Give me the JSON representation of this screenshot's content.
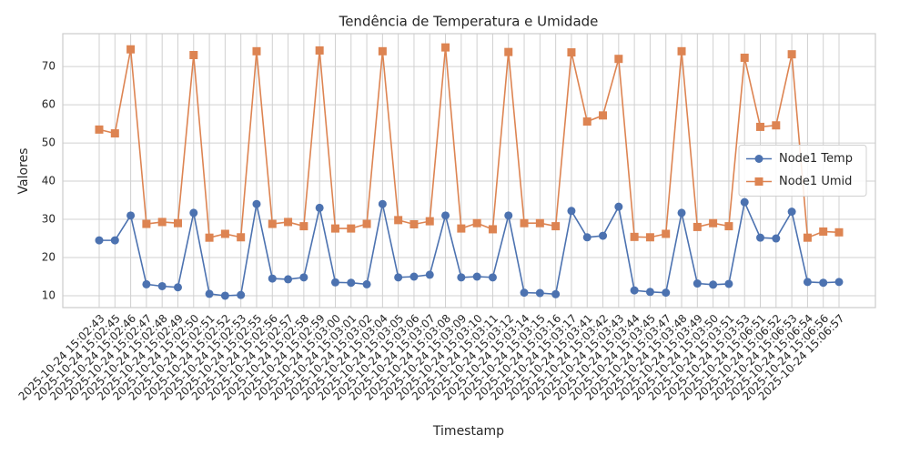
{
  "chart_data": {
    "type": "line",
    "title": "Tendência de Temperatura e Umidade",
    "xlabel": "Timestamp",
    "ylabel": "Valores",
    "categories": [
      "2025-10-24 15:02:43",
      "2025-10-24 15:02:45",
      "2025-10-24 15:02:46",
      "2025-10-24 15:02:47",
      "2025-10-24 15:02:48",
      "2025-10-24 15:02:49",
      "2025-10-24 15:02:50",
      "2025-10-24 15:02:51",
      "2025-10-24 15:02:52",
      "2025-10-24 15:02:53",
      "2025-10-24 15:02:55",
      "2025-10-24 15:02:56",
      "2025-10-24 15:02:57",
      "2025-10-24 15:02:58",
      "2025-10-24 15:02:59",
      "2025-10-24 15:03:00",
      "2025-10-24 15:03:01",
      "2025-10-24 15:03:02",
      "2025-10-24 15:03:04",
      "2025-10-24 15:03:05",
      "2025-10-24 15:03:06",
      "2025-10-24 15:03:07",
      "2025-10-24 15:03:08",
      "2025-10-24 15:03:09",
      "2025-10-24 15:03:10",
      "2025-10-24 15:03:11",
      "2025-10-24 15:03:12",
      "2025-10-24 15:03:14",
      "2025-10-24 15:03:15",
      "2025-10-24 15:03:16",
      "2025-10-24 15:03:17",
      "2025-10-24 15:03:41",
      "2025-10-24 15:03:42",
      "2025-10-24 15:03:43",
      "2025-10-24 15:03:44",
      "2025-10-24 15:03:45",
      "2025-10-24 15:03:47",
      "2025-10-24 15:03:48",
      "2025-10-24 15:03:49",
      "2025-10-24 15:03:50",
      "2025-10-24 15:03:51",
      "2025-10-24 15:03:53",
      "2025-10-24 15:06:51",
      "2025-10-24 15:06:52",
      "2025-10-24 15:06:53",
      "2025-10-24 15:06:54",
      "2025-10-24 15:06:56",
      "2025-10-24 15:06:57"
    ],
    "series": [
      {
        "name": "Node1 Temp",
        "color": "#4c72b0",
        "marker": "o",
        "values": [
          24.5,
          24.5,
          31,
          13,
          12.5,
          12.2,
          31.7,
          10.5,
          10,
          10.2,
          34,
          14.5,
          14.3,
          14.8,
          33,
          13.5,
          13.4,
          13,
          34,
          14.8,
          15,
          15.5,
          31,
          14.8,
          15,
          14.8,
          31,
          10.8,
          10.7,
          10.4,
          32.2,
          25.3,
          25.7,
          33.3,
          11.4,
          11,
          10.8,
          31.7,
          13.2,
          12.9,
          13.1,
          34.5,
          25.2,
          25,
          32,
          13.6,
          13.4,
          13.6
        ]
      },
      {
        "name": "Node1 Umid",
        "color": "#dd8452",
        "marker": "s",
        "values": [
          53.5,
          52.5,
          74.5,
          28.8,
          29.3,
          29,
          73,
          25.2,
          26.2,
          25.3,
          74,
          28.8,
          29.3,
          28.2,
          74.2,
          27.6,
          27.6,
          28.8,
          74,
          29.8,
          28.7,
          29.5,
          75,
          27.6,
          29,
          27.4,
          73.8,
          29,
          29,
          28.2,
          73.7,
          55.6,
          57.2,
          72,
          25.4,
          25.3,
          26.2,
          74,
          28,
          29,
          28.2,
          72.3,
          54.2,
          54.6,
          73.2,
          25.2,
          26.8,
          26.6
        ]
      }
    ],
    "ylim": [
      6.9,
      78.6
    ],
    "yticks": [
      10,
      20,
      30,
      40,
      50,
      60,
      70
    ],
    "grid": true,
    "legend": "center right"
  }
}
